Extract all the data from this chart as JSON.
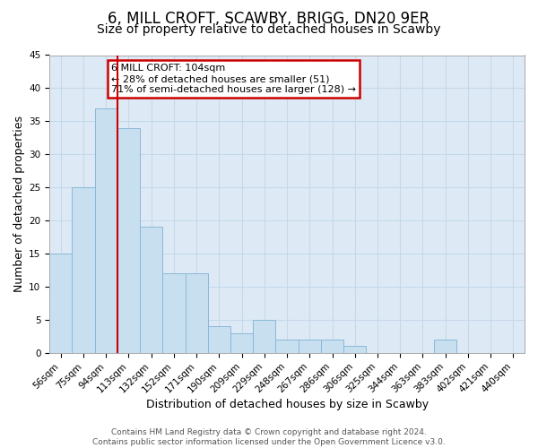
{
  "title": "6, MILL CROFT, SCAWBY, BRIGG, DN20 9ER",
  "subtitle": "Size of property relative to detached houses in Scawby",
  "xlabel": "Distribution of detached houses by size in Scawby",
  "ylabel": "Number of detached properties",
  "bar_labels": [
    "56sqm",
    "75sqm",
    "94sqm",
    "113sqm",
    "132sqm",
    "152sqm",
    "171sqm",
    "190sqm",
    "209sqm",
    "229sqm",
    "248sqm",
    "267sqm",
    "286sqm",
    "306sqm",
    "325sqm",
    "344sqm",
    "363sqm",
    "383sqm",
    "402sqm",
    "421sqm",
    "440sqm"
  ],
  "bar_values": [
    15,
    25,
    37,
    34,
    19,
    12,
    12,
    4,
    3,
    5,
    2,
    2,
    2,
    1,
    0,
    0,
    0,
    2,
    0,
    0,
    0
  ],
  "bar_color": "#c8dff0",
  "bar_edge_color": "#8ab8d8",
  "vline_index": 2.5,
  "vline_color": "#cc0000",
  "annotation_text_line1": "6 MILL CROFT: 104sqm",
  "annotation_text_line2": "← 28% of detached houses are smaller (51)",
  "annotation_text_line3": "71% of semi-detached houses are larger (128) →",
  "ylim": [
    0,
    45
  ],
  "yticks": [
    0,
    5,
    10,
    15,
    20,
    25,
    30,
    35,
    40,
    45
  ],
  "axes_bg_color": "#ddeaf5",
  "background_color": "#ffffff",
  "grid_color": "#c5d8ea",
  "title_fontsize": 12,
  "subtitle_fontsize": 10,
  "axis_label_fontsize": 9,
  "tick_fontsize": 7.5,
  "annotation_fontsize": 8,
  "footer_fontsize": 6.5,
  "footer_line1": "Contains HM Land Registry data © Crown copyright and database right 2024.",
  "footer_line2": "Contains public sector information licensed under the Open Government Licence v3.0."
}
